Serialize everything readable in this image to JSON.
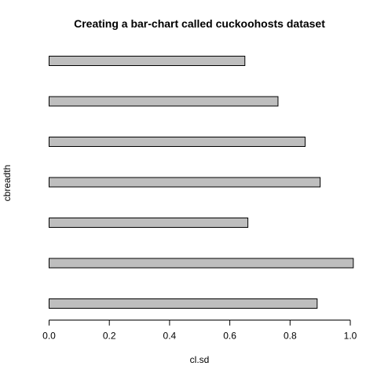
{
  "chart_data": {
    "type": "bar",
    "orientation": "horizontal",
    "title": "Creating a bar-chart called cuckoohosts dataset",
    "xlabel": "cl.sd",
    "ylabel": "cbreadth",
    "values": [
      0.89,
      1.01,
      0.66,
      0.9,
      0.85,
      0.76,
      0.65
    ],
    "xlim": [
      0,
      1.0
    ],
    "xticks": [
      0.0,
      0.2,
      0.4,
      0.6,
      0.8,
      1.0
    ],
    "xtick_labels": [
      "0.0",
      "0.2",
      "0.4",
      "0.6",
      "0.8",
      "1.0"
    ],
    "bar_color": "#bebebe",
    "border_color": "#000000",
    "grid": false
  }
}
